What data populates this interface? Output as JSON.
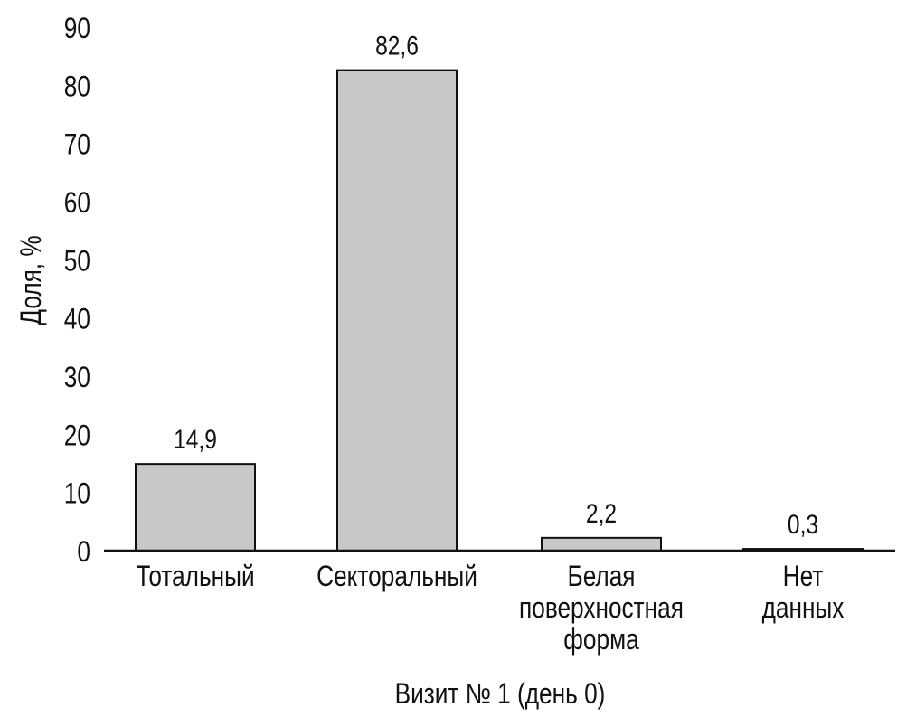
{
  "chart_data": {
    "type": "bar",
    "categories": [
      [
        "Тотальный"
      ],
      [
        "Секторальный"
      ],
      [
        "Белая",
        "поверхностная",
        "форма"
      ],
      [
        "Нет",
        "данных"
      ]
    ],
    "values": [
      14.9,
      82.6,
      2.2,
      0.3
    ],
    "value_labels": [
      "14,9",
      "82,6",
      "2,2",
      "0,3"
    ],
    "xlabel": "Визит № 1 (день 0)",
    "ylabel": "Доля, %",
    "ylim": [
      0,
      90
    ],
    "yticks": [
      0,
      10,
      20,
      30,
      40,
      50,
      60,
      70,
      80,
      90
    ],
    "grid": false,
    "bar_color": "#c8c8c8",
    "edge_color": "#111111"
  }
}
